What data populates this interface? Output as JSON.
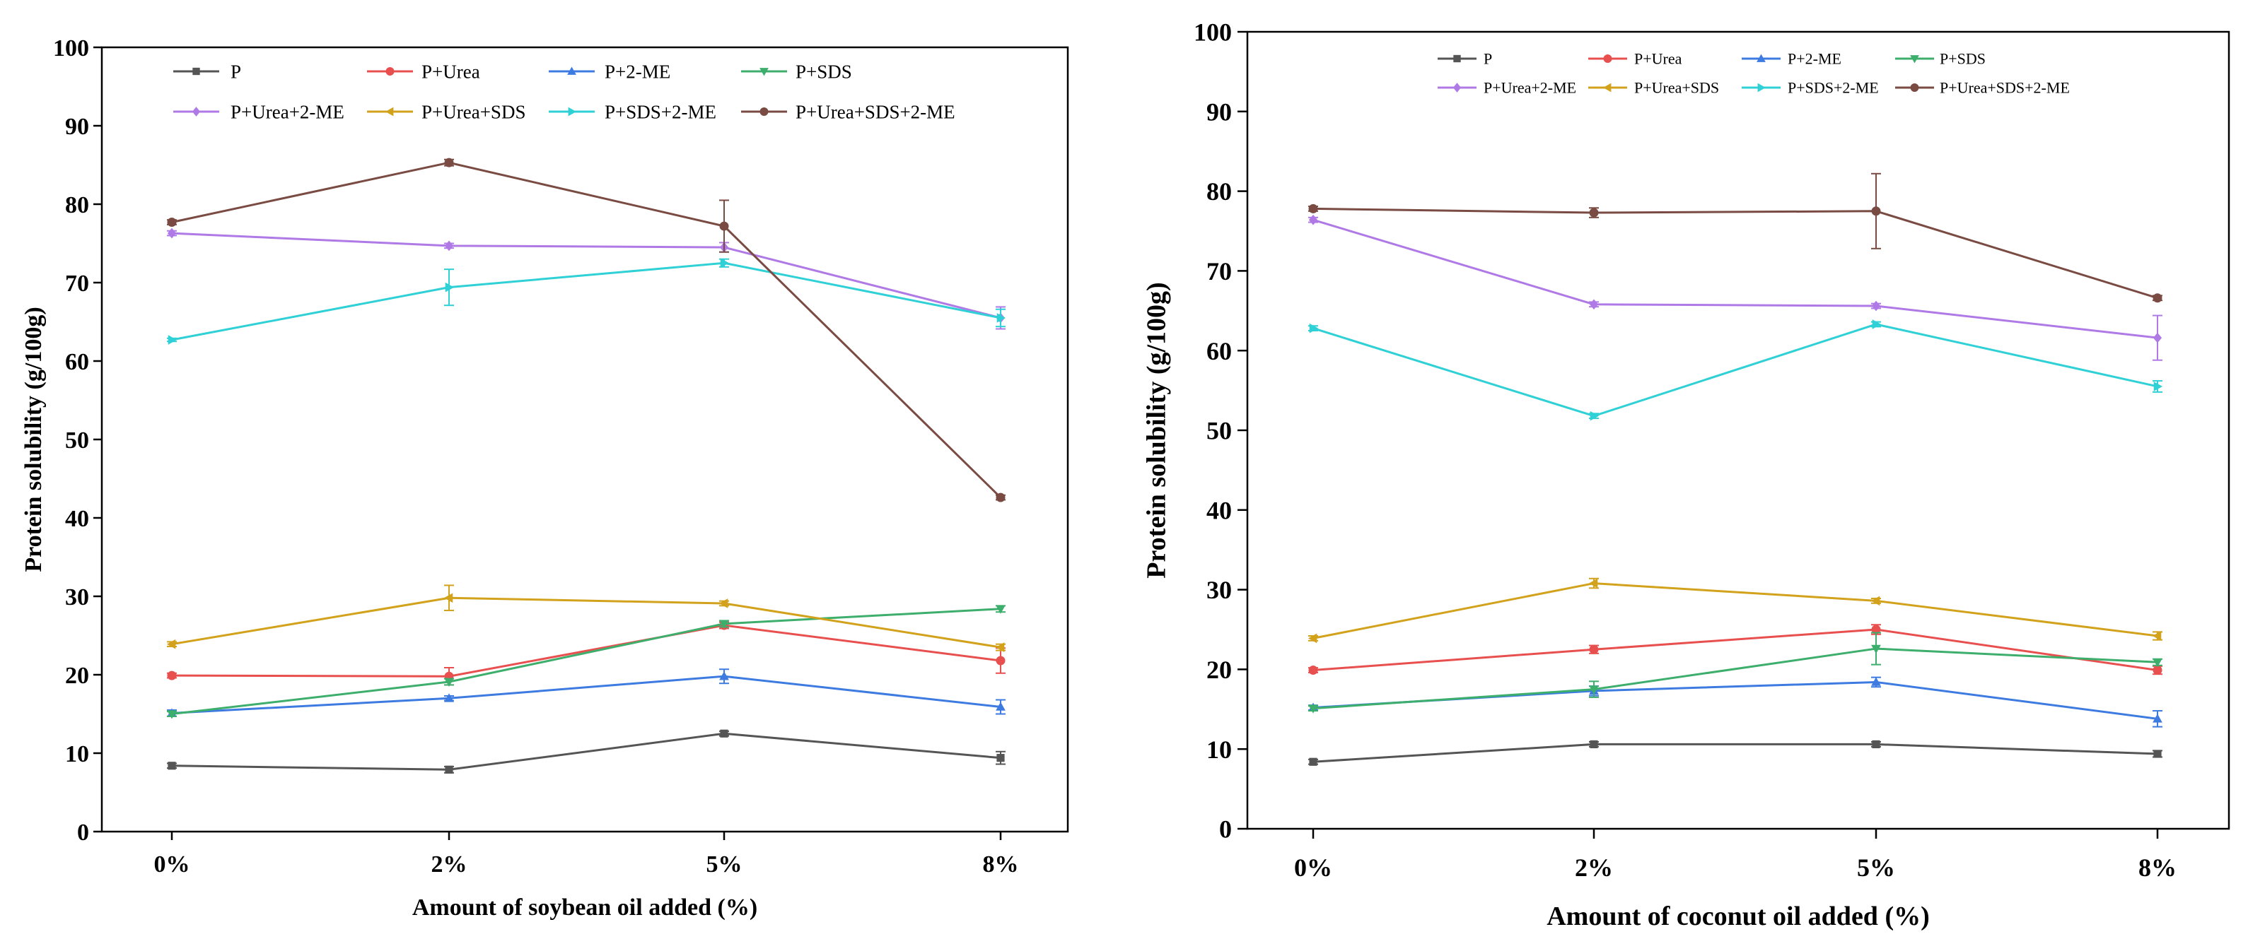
{
  "chart_data": [
    {
      "type": "line",
      "title": "",
      "xlabel": "Amount of soybean oil added (%)",
      "ylabel": "Protein solubility (g/100g)",
      "categories": [
        "0%",
        "2%",
        "5%",
        "8%"
      ],
      "ylim": [
        0,
        100
      ],
      "yticks": [
        "0",
        "10",
        "20",
        "30",
        "40",
        "50",
        "60",
        "70",
        "80",
        "90",
        "100"
      ],
      "grid": false,
      "legend_position": "top",
      "series": [
        {
          "name": "P",
          "color": "#555555",
          "marker": "square",
          "values": [
            8.4,
            7.9,
            12.5,
            9.4
          ],
          "errors": [
            0.3,
            0.4,
            0.3,
            0.8
          ]
        },
        {
          "name": "P+Urea",
          "color": "#e8504f",
          "marker": "circle",
          "values": [
            19.9,
            19.8,
            26.3,
            21.8
          ],
          "errors": [
            0.3,
            1.1,
            0.4,
            1.6
          ]
        },
        {
          "name": "P+2-ME",
          "color": "#3d7be0",
          "marker": "triangle-up",
          "values": [
            15.1,
            17.0,
            19.8,
            15.9
          ],
          "errors": [
            0.4,
            0.3,
            0.9,
            0.9
          ]
        },
        {
          "name": "P+SDS",
          "color": "#3dae6c",
          "marker": "triangle-down",
          "values": [
            15.0,
            19.1,
            26.5,
            28.4
          ],
          "errors": [
            0.3,
            0.4,
            0.4,
            0.4
          ]
        },
        {
          "name": "P+Urea+2-ME",
          "color": "#b07ae6",
          "marker": "diamond",
          "values": [
            76.3,
            74.7,
            74.5,
            65.5
          ],
          "errors": [
            0.3,
            0.3,
            0.6,
            1.4
          ]
        },
        {
          "name": "P+Urea+SDS",
          "color": "#d2a21c",
          "marker": "triangle-left",
          "values": [
            23.9,
            29.8,
            29.1,
            23.5
          ],
          "errors": [
            0.3,
            1.6,
            0.3,
            0.4
          ]
        },
        {
          "name": "P+SDS+2-ME",
          "color": "#2fd0d6",
          "marker": "triangle-right",
          "values": [
            62.7,
            69.4,
            72.5,
            65.5
          ],
          "errors": [
            0.2,
            2.3,
            0.5,
            1.1
          ]
        },
        {
          "name": "P+Urea+SDS+2-ME",
          "color": "#7a4b42",
          "marker": "circle",
          "values": [
            77.7,
            85.3,
            77.2,
            42.6
          ],
          "errors": [
            0.3,
            0.4,
            3.3,
            0.3
          ]
        }
      ]
    },
    {
      "type": "line",
      "title": "",
      "xlabel": "Amount of coconut oil added (%)",
      "ylabel": "Protein solubility (g/100g)",
      "categories": [
        "0%",
        "2%",
        "5%",
        "8%"
      ],
      "ylim": [
        0,
        100
      ],
      "yticks": [
        "0",
        "10",
        "20",
        "30",
        "40",
        "50",
        "60",
        "70",
        "80",
        "90",
        "100"
      ],
      "grid": false,
      "legend_position": "top",
      "series": [
        {
          "name": "P",
          "color": "#555555",
          "marker": "square",
          "values": [
            8.4,
            10.6,
            10.6,
            9.4
          ],
          "errors": [
            0.3,
            0.3,
            0.3,
            0.4
          ]
        },
        {
          "name": "P+Urea",
          "color": "#e8504f",
          "marker": "circle",
          "values": [
            19.9,
            22.5,
            25.0,
            19.9
          ],
          "errors": [
            0.3,
            0.5,
            0.6,
            0.5
          ]
        },
        {
          "name": "P+2-ME",
          "color": "#3d7be0",
          "marker": "triangle-up",
          "values": [
            15.2,
            17.3,
            18.4,
            13.8
          ],
          "errors": [
            0.3,
            0.6,
            0.6,
            1.0
          ]
        },
        {
          "name": "P+SDS",
          "color": "#3dae6c",
          "marker": "triangle-down",
          "values": [
            15.1,
            17.5,
            22.6,
            20.9
          ],
          "errors": [
            0.3,
            1.0,
            2.0,
            0.4
          ]
        },
        {
          "name": "P+Urea+2-ME",
          "color": "#b07ae6",
          "marker": "diamond",
          "values": [
            76.4,
            65.8,
            65.6,
            61.6
          ],
          "errors": [
            0.3,
            0.3,
            0.3,
            2.8
          ]
        },
        {
          "name": "P+Urea+SDS",
          "color": "#d2a21c",
          "marker": "triangle-left",
          "values": [
            23.9,
            30.8,
            28.6,
            24.2
          ],
          "errors": [
            0.3,
            0.6,
            0.3,
            0.5
          ]
        },
        {
          "name": "P+SDS+2-ME",
          "color": "#2fd0d6",
          "marker": "triangle-right",
          "values": [
            62.8,
            51.8,
            63.3,
            55.5
          ],
          "errors": [
            0.3,
            0.3,
            0.3,
            0.7
          ]
        },
        {
          "name": "P+Urea+SDS+2-ME",
          "color": "#7a4b42",
          "marker": "circle",
          "values": [
            77.8,
            77.3,
            77.5,
            66.6
          ],
          "errors": [
            0.3,
            0.6,
            4.7,
            0.3
          ]
        }
      ]
    }
  ]
}
